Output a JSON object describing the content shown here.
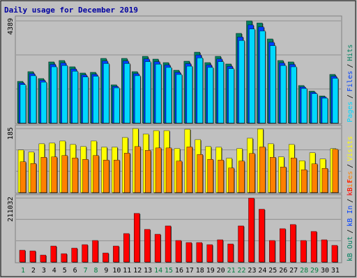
{
  "chart_data": {
    "type": "bar",
    "title": "Daily usage for December 2019",
    "categories": [
      "1",
      "2",
      "3",
      "4",
      "5",
      "6",
      "7",
      "8",
      "9",
      "10",
      "11",
      "12",
      "13",
      "14",
      "15",
      "16",
      "17",
      "18",
      "19",
      "20",
      "21",
      "22",
      "23",
      "24",
      "25",
      "26",
      "27",
      "28",
      "29",
      "30",
      "31"
    ],
    "weekend_indices": [
      0,
      6,
      7,
      13,
      14,
      20,
      21,
      27,
      28
    ],
    "weekend_color": "#008040",
    "separator": "/",
    "panels": [
      {
        "ylim": [
          0,
          4389
        ],
        "yticks": [
          4389
        ],
        "series": [
          {
            "name": "Hits",
            "color": "#008060",
            "values": [
              1791,
              2209,
              1911,
              2627,
              2687,
              2418,
              2150,
              2180,
              2777,
              1642,
              2777,
              2209,
              2866,
              2747,
              2597,
              2269,
              2657,
              3045,
              2597,
              2866,
              2538,
              3852,
              4389,
              4299,
              3613,
              2687,
              2627,
              1612,
              1373,
              1164,
              2090
            ]
          },
          {
            "name": "Files",
            "color": "#0040ff",
            "values": [
              1719,
              2121,
              1835,
              2522,
              2580,
              2321,
              2064,
              2093,
              2666,
              1576,
              2666,
              2121,
              2751,
              2637,
              2493,
              2178,
              2551,
              2923,
              2493,
              2751,
              2436,
              3698,
              4213,
              4127,
              3468,
              2580,
              2522,
              1548,
              1318,
              1117,
              2006
            ]
          },
          {
            "name": "Pages",
            "color": "#00d8ff",
            "values": [
              1648,
              2032,
              1758,
              2417,
              2472,
              2225,
              1978,
              2006,
              2555,
              1511,
              2555,
              2032,
              2637,
              2527,
              2389,
              2087,
              2444,
              2801,
              2389,
              2637,
              2335,
              3544,
              4038,
              3955,
              3324,
              2472,
              2417,
              1483,
              1263,
              1071,
              1923
            ]
          }
        ]
      },
      {
        "ylim": [
          0,
          185
        ],
        "yticks": [
          185
        ],
        "series": [
          {
            "name": "Visits",
            "color": "#ffff00",
            "values": [
              123,
              117,
              141,
              143,
              149,
              139,
              133,
              149,
              131,
              131,
              159,
              185,
              169,
              179,
              179,
              127,
              183,
              153,
              133,
              131,
              99,
              127,
              157,
              184,
              141,
              103,
              139,
              92,
              115,
              97,
              127
            ]
          },
          {
            "name": "Sites",
            "color": "#ff8000",
            "values": [
              89,
              84,
              102,
              103,
              107,
              100,
              96,
              107,
              94,
              94,
              114,
              133,
              122,
              129,
              129,
              91,
              132,
              110,
              96,
              94,
              71,
              91,
              113,
              132,
              102,
              74,
              100,
              66,
              83,
              70,
              125
            ]
          }
        ]
      },
      {
        "ylim": [
          0,
          211032
        ],
        "yticks": [
          211032
        ],
        "series": [
          {
            "name": "kB F",
            "color": "#ff0000",
            "values": [
              38995,
              36701,
              22938,
              52758,
              27526,
              45877,
              57346,
              71109,
              29820,
              52758,
              94046,
              160567,
              107810,
              91753,
              119279,
              71109,
              64227,
              64227,
              57346,
              73403,
              59640,
              119279,
              211032,
              174331,
              71109,
              110103,
              123867,
              71109,
              100929,
              73403,
              55052
            ]
          }
        ],
        "other_legend": [
          {
            "name": "kB In",
            "color": "#0040ff"
          },
          {
            "name": "kB Out",
            "color": "#008060"
          }
        ]
      }
    ]
  }
}
